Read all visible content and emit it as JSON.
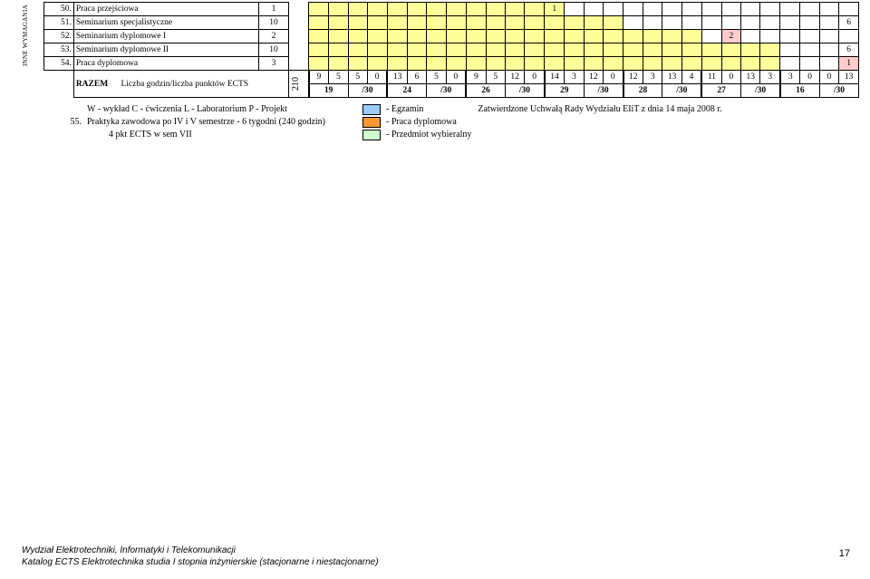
{
  "sidelabel": "INNE WYMAGANIA",
  "rows": [
    {
      "num": "50.",
      "name": "Praca przejściowa",
      "valA": "1",
      "yellowSpan": 12,
      "big": "1",
      "tail": ""
    },
    {
      "num": "51.",
      "name": "Seminarium specjalistyczne",
      "valA": "10",
      "yellowSpan": 16,
      "big": "",
      "tail": "6"
    },
    {
      "num": "52.",
      "name": "Seminarium dyplomowe I",
      "valA": "2",
      "yellowSpan": 20,
      "big": "",
      "pink": "2",
      "tail": ""
    },
    {
      "num": "53.",
      "name": "Seminarium dyplomowe II",
      "valA": "10",
      "yellowSpan": 24,
      "big": "",
      "tail": "6"
    },
    {
      "num": "54.",
      "name": "Praca dyplomowa",
      "valA": "3",
      "yellowSpan": 24,
      "big": "",
      "pinkEnd": "1",
      "tail": ""
    }
  ],
  "razem": {
    "label": "RAZEM",
    "sub": "Liczba godzin/liczba punktów ECTS",
    "r210": "210"
  },
  "semRow1": [
    "9",
    "5",
    "5",
    "0",
    "13",
    "6",
    "5",
    "0",
    "9",
    "5",
    "12",
    "0",
    "14",
    "3",
    "12",
    "0",
    "12",
    "3",
    "13",
    "4",
    "11",
    "0",
    "13",
    "3",
    "3",
    "0",
    "0",
    "13"
  ],
  "semRow2": [
    {
      "a": "19",
      "b": "/30"
    },
    {
      "a": "24",
      "b": "/30"
    },
    {
      "a": "26",
      "b": "/30"
    },
    {
      "a": "29",
      "b": "/30"
    },
    {
      "a": "28",
      "b": "/30"
    },
    {
      "a": "27",
      "b": "/30"
    },
    {
      "a": "16",
      "b": "/30"
    }
  ],
  "legendLeft": [
    {
      "num": "",
      "text": "W - wykład  C - ćwiczenia  L - Laboratorium  P - Projekt"
    },
    {
      "num": "55.",
      "text": "Praktyka zawodowa po IV i V semestrze - 6 tygodni (240 godzin)"
    },
    {
      "num": "",
      "text": "4 pkt ECTS w sem VII"
    }
  ],
  "legendRight": [
    {
      "swatch": "blue",
      "text": " - Egzamin",
      "extra": "Zatwierdzone Uchwałą Rady Wydziału EIiT z dnia 14 maja 2008 r."
    },
    {
      "swatch": "orange",
      "text": " - Praca dyplomowa",
      "extra": ""
    },
    {
      "swatch": "green",
      "text": " - Przedmiot wybieralny",
      "extra": ""
    }
  ],
  "footer1": "Wydział Elektrotechniki, Informatyki i Telekomunikacji",
  "footer2": "Katalog ECTS Elektrotechnika studia I stopnia inżynierskie (stacjonarne i niestacjonarne)",
  "pagenum": "17",
  "colors": {
    "yellow": "#ffff99",
    "blue": "#99ccff",
    "pink": "#ffcccc",
    "orange": "#ff9933",
    "green": "#ccffcc"
  }
}
